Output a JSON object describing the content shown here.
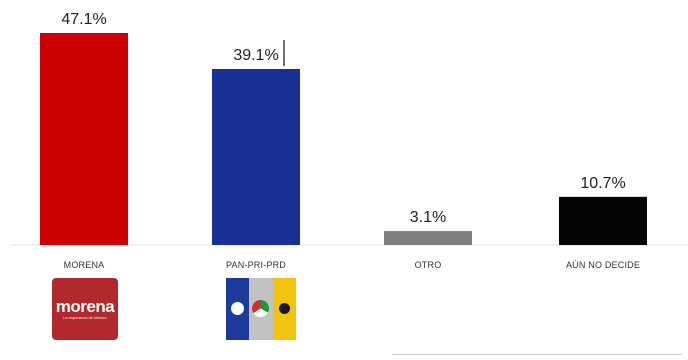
{
  "chart_data": {
    "type": "bar",
    "categories": [
      "MORENA",
      "PAN-PRI-PRD",
      "OTRO",
      "AÚN NO DECIDE"
    ],
    "values": [
      47.1,
      39.1,
      3.1,
      10.7
    ],
    "value_labels": [
      "47.1%",
      "39.1%",
      "3.1%",
      "10.7%"
    ],
    "colors": [
      "#cc0000",
      "#1b3097",
      "#7f7f7f",
      "#050505"
    ],
    "ylim": [
      0,
      47.1
    ],
    "grid": false,
    "legend": "none"
  },
  "logos": [
    {
      "name": "morena-logo",
      "word": "morena",
      "tagline": "La esperanza de México"
    },
    {
      "name": "pan-pri-prd-logo"
    }
  ]
}
